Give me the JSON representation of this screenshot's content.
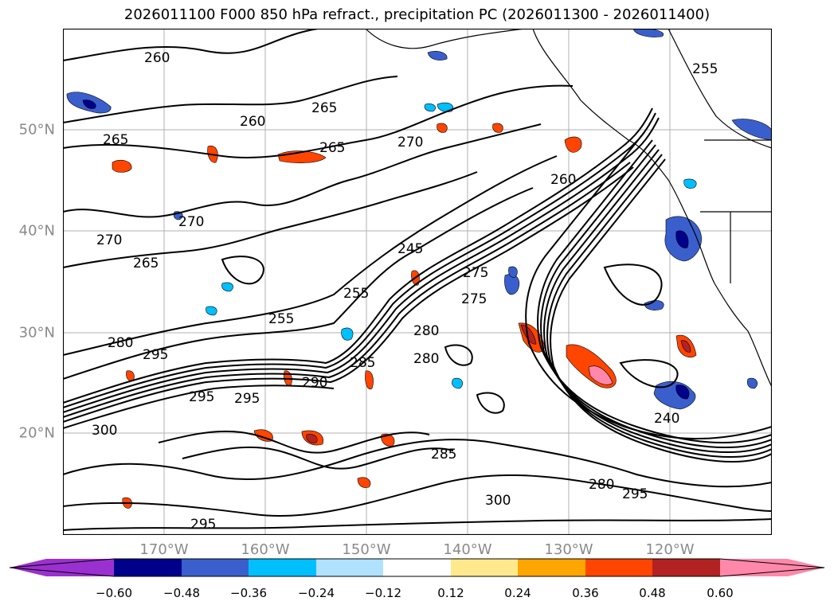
{
  "title": "2026011100 F000 850 hPa refract., precipitation PC (2026011300 - 2026011400)",
  "map": {
    "lat_labels": [
      "50°N",
      "40°N",
      "30°N",
      "20°N"
    ],
    "lon_labels": [
      "170°W",
      "160°W",
      "150°W",
      "140°W",
      "130°W",
      "120°W"
    ],
    "contour_labels": [
      "260",
      "265",
      "260",
      "265",
      "265",
      "270",
      "270",
      "270",
      "265",
      "245",
      "255",
      "255",
      "280",
      "295",
      "275",
      "280",
      "285",
      "290",
      "295",
      "300",
      "295",
      "300",
      "295",
      "295",
      "285",
      "275",
      "280",
      "240",
      "255",
      "260",
      "280"
    ]
  },
  "colorbar": {
    "tick_labels": [
      "−0.60",
      "−0.48",
      "−0.36",
      "−0.24",
      "−0.12",
      "0.12",
      "0.24",
      "0.36",
      "0.48",
      "0.60"
    ],
    "colors": [
      "#9b30d0",
      "#00008b",
      "#3a5fcd",
      "#00bfff",
      "#b0e2ff",
      "#ffffff",
      "#ffe98c",
      "#ffa500",
      "#ff4500",
      "#b22222",
      "#ff88aa"
    ]
  },
  "chart_data": {
    "type": "heatmap",
    "title": "2026011100 F000 850 hPa refract., precipitation PC (2026011300 - 2026011400)",
    "x_ticks": [
      "170°W",
      "160°W",
      "150°W",
      "140°W",
      "130°W",
      "120°W"
    ],
    "y_ticks": [
      "50°N",
      "40°N",
      "30°N",
      "20°N"
    ],
    "legend": {
      "levels": [
        -0.6,
        -0.48,
        -0.36,
        -0.24,
        -0.12,
        0.12,
        0.24,
        0.36,
        0.48,
        0.6
      ],
      "extend": "both"
    }
  }
}
